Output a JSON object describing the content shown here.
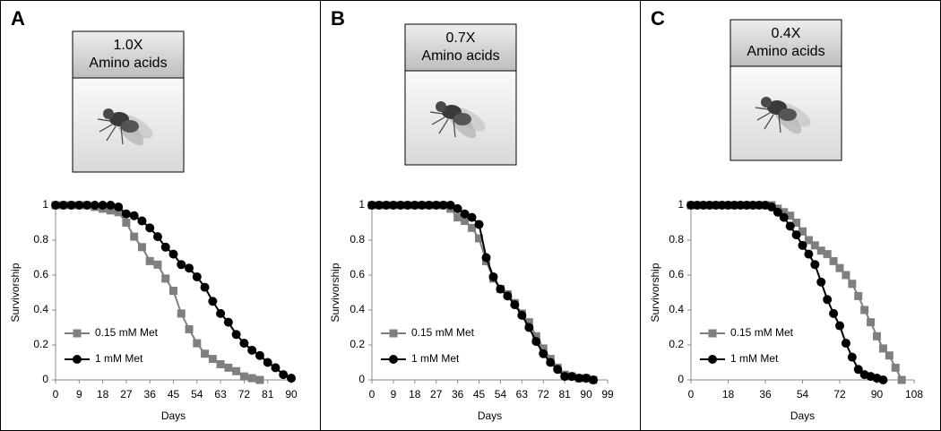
{
  "chart_data": [
    {
      "type": "line",
      "panel_label": "A",
      "header": [
        "1.0X",
        "Amino acids"
      ],
      "x_label": "Days",
      "y_label": "Survivorship",
      "xlim": [
        0,
        90
      ],
      "xticks": [
        0,
        9,
        18,
        27,
        36,
        45,
        54,
        63,
        72,
        81,
        90
      ],
      "ylim": [
        0,
        1
      ],
      "yticks": [
        0,
        0.2,
        0.4,
        0.6,
        0.8,
        1
      ],
      "legend": "lower left",
      "series": [
        {
          "name": "0.15 mM Met",
          "color": "#7f7f7f",
          "marker": "square",
          "x": [
            0,
            3,
            6,
            9,
            12,
            15,
            18,
            21,
            24,
            27,
            30,
            33,
            36,
            39,
            42,
            45,
            48,
            51,
            54,
            57,
            60,
            63,
            66,
            69,
            72,
            75,
            78
          ],
          "values": [
            1,
            1,
            1,
            1,
            1,
            0.99,
            0.98,
            0.97,
            0.96,
            0.9,
            0.82,
            0.76,
            0.68,
            0.66,
            0.58,
            0.51,
            0.38,
            0.29,
            0.21,
            0.15,
            0.12,
            0.09,
            0.07,
            0.05,
            0.02,
            0.01,
            0
          ]
        },
        {
          "name": "1 mM Met",
          "color": "#000000",
          "marker": "circle",
          "x": [
            0,
            3,
            6,
            9,
            12,
            15,
            18,
            21,
            24,
            27,
            30,
            33,
            36,
            39,
            42,
            45,
            48,
            51,
            54,
            57,
            60,
            63,
            66,
            69,
            72,
            75,
            78,
            81,
            84,
            87,
            90
          ],
          "values": [
            1,
            1,
            1,
            1,
            1,
            1,
            1,
            1,
            0.99,
            0.95,
            0.94,
            0.91,
            0.87,
            0.82,
            0.76,
            0.72,
            0.66,
            0.64,
            0.59,
            0.53,
            0.45,
            0.38,
            0.33,
            0.26,
            0.21,
            0.17,
            0.14,
            0.1,
            0.07,
            0.03,
            0.01
          ]
        }
      ]
    },
    {
      "type": "line",
      "panel_label": "B",
      "header": [
        "0.7X",
        "Amino acids"
      ],
      "x_label": "Days",
      "y_label": "Survivorship",
      "xlim": [
        0,
        99
      ],
      "xticks": [
        0,
        9,
        18,
        27,
        36,
        45,
        54,
        63,
        72,
        81,
        90,
        99
      ],
      "ylim": [
        0,
        1
      ],
      "yticks": [
        0,
        0.2,
        0.4,
        0.6,
        0.8,
        1
      ],
      "legend": "lower left",
      "series": [
        {
          "name": "0.15 mM Met",
          "color": "#7f7f7f",
          "marker": "square",
          "x": [
            0,
            3,
            6,
            9,
            12,
            15,
            18,
            21,
            24,
            27,
            30,
            33,
            36,
            39,
            42,
            45,
            48,
            51,
            54,
            57,
            60,
            63,
            66,
            69,
            72,
            75,
            78,
            81,
            84,
            87,
            90,
            93
          ],
          "values": [
            1,
            1,
            1,
            1,
            1,
            1,
            1,
            1,
            1,
            1,
            1,
            0.98,
            0.93,
            0.91,
            0.87,
            0.81,
            0.68,
            0.58,
            0.52,
            0.49,
            0.44,
            0.38,
            0.33,
            0.25,
            0.18,
            0.12,
            0.07,
            0.03,
            0.02,
            0.01,
            0.01,
            0
          ]
        },
        {
          "name": "1 mM Met",
          "color": "#000000",
          "marker": "circle",
          "x": [
            0,
            3,
            6,
            9,
            12,
            15,
            18,
            21,
            24,
            27,
            30,
            33,
            36,
            39,
            42,
            45,
            48,
            51,
            54,
            57,
            60,
            63,
            66,
            69,
            72,
            75,
            78,
            81,
            84,
            87,
            90,
            93
          ],
          "values": [
            1,
            1,
            1,
            1,
            1,
            1,
            1,
            1,
            1,
            1,
            1,
            1,
            0.98,
            0.95,
            0.93,
            0.89,
            0.7,
            0.59,
            0.52,
            0.48,
            0.43,
            0.37,
            0.3,
            0.22,
            0.15,
            0.1,
            0.06,
            0.02,
            0.02,
            0.01,
            0.01,
            0
          ]
        }
      ]
    },
    {
      "type": "line",
      "panel_label": "C",
      "header": [
        "0.4X",
        "Amino acids"
      ],
      "x_label": "Days",
      "y_label": "Survivorship",
      "xlim": [
        0,
        108
      ],
      "xticks": [
        0,
        18,
        36,
        54,
        72,
        90,
        108
      ],
      "ylim": [
        0,
        1
      ],
      "yticks": [
        0,
        0.2,
        0.4,
        0.6,
        0.8,
        1
      ],
      "legend": "lower left",
      "series": [
        {
          "name": "0.15 mM Met",
          "color": "#7f7f7f",
          "marker": "square",
          "x": [
            0,
            3,
            6,
            9,
            12,
            15,
            18,
            21,
            24,
            27,
            30,
            33,
            36,
            39,
            42,
            45,
            48,
            51,
            54,
            57,
            60,
            63,
            66,
            69,
            72,
            75,
            78,
            81,
            84,
            87,
            90,
            93,
            96,
            99,
            102
          ],
          "values": [
            1,
            1,
            1,
            1,
            1,
            1,
            1,
            1,
            1,
            1,
            1,
            1,
            1,
            1,
            0.98,
            0.96,
            0.94,
            0.9,
            0.85,
            0.8,
            0.77,
            0.74,
            0.72,
            0.68,
            0.64,
            0.6,
            0.55,
            0.48,
            0.4,
            0.33,
            0.25,
            0.18,
            0.14,
            0.07,
            0
          ]
        },
        {
          "name": "1 mM Met",
          "color": "#000000",
          "marker": "circle",
          "x": [
            0,
            3,
            6,
            9,
            12,
            15,
            18,
            21,
            24,
            27,
            30,
            33,
            36,
            39,
            42,
            45,
            48,
            51,
            54,
            57,
            60,
            63,
            66,
            69,
            72,
            75,
            78,
            81,
            84,
            87,
            90,
            93
          ],
          "values": [
            1,
            1,
            1,
            1,
            1,
            1,
            1,
            1,
            1,
            1,
            1,
            1,
            1,
            0.99,
            0.96,
            0.93,
            0.88,
            0.83,
            0.77,
            0.72,
            0.66,
            0.56,
            0.46,
            0.38,
            0.31,
            0.21,
            0.13,
            0.06,
            0.03,
            0.02,
            0.01,
            0
          ]
        }
      ]
    }
  ]
}
